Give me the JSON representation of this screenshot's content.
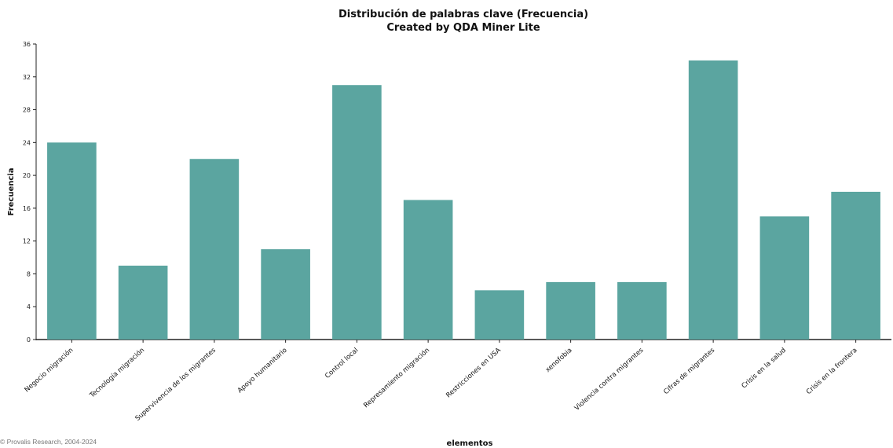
{
  "chart_data": {
    "type": "bar",
    "title": "Distribución de palabras clave (Frecuencia)",
    "subtitle": "Created by QDA Miner Lite",
    "xlabel": "elementos",
    "ylabel": "Frecuencia",
    "ylim": [
      0,
      36
    ],
    "yticks": [
      0,
      4,
      8,
      12,
      16,
      20,
      24,
      28,
      32,
      36
    ],
    "categories": [
      "Negocio migración",
      "Tecnología migración",
      "Supervivencia de los migrantes",
      "Apoyo humanitario",
      "Control local",
      "Represamiento migración",
      "Restricciones en USA",
      "xenofobia",
      "Violencia contra  migrantes",
      "Cifras de migrantes",
      "Crisis en la salud",
      "Crisis en la frontera"
    ],
    "values": [
      24,
      9,
      22,
      11,
      31,
      17,
      6,
      7,
      7,
      34,
      15,
      18
    ],
    "bar_color": "#5ba5a0",
    "grid": false,
    "legend": "none"
  },
  "footer": {
    "copyright": "© Provalis Research, 2004-2024"
  }
}
